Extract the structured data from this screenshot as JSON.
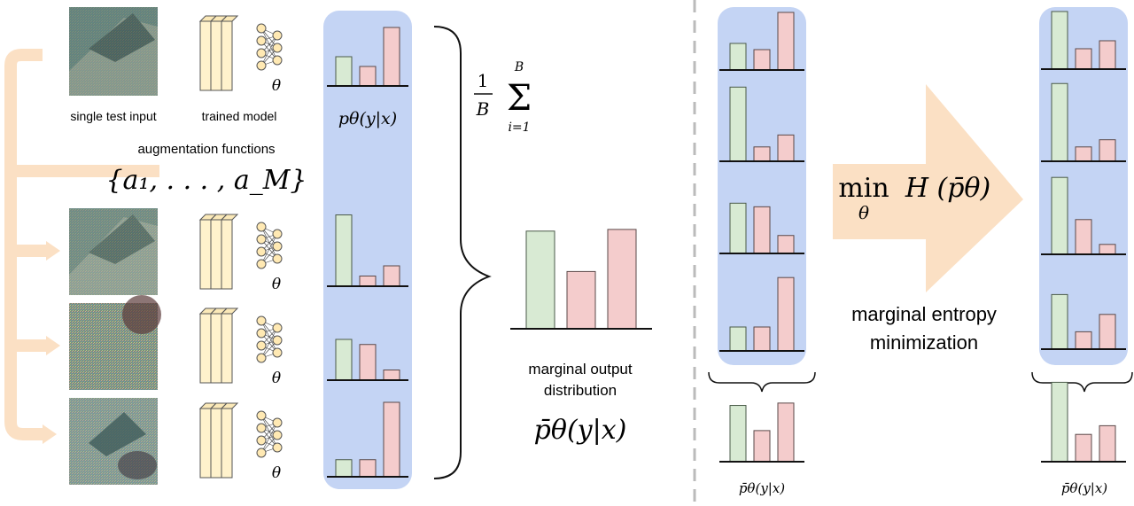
{
  "labels": {
    "single_test_input": "single test input",
    "trained_model": "trained model",
    "augmentation_functions": "augmentation functions",
    "aug_set": "{a₁, . . . , a_M}",
    "theta": "θ",
    "p_theta": "pθ(y|x)",
    "sum_one": "1",
    "sum_B": "B",
    "sum_top": "B",
    "sum_bottom": "i=1",
    "marginal_output": "marginal output",
    "distribution": "distribution",
    "pbar_large": "p̄θ(y|x)",
    "min": "min",
    "min_sub": "θ",
    "entropy": "H (p̄θ)",
    "marginal_entropy": "marginal entropy",
    "minimization": "minimization",
    "pbar_small_left": "p̄θ(y|x)",
    "pbar_small_right": "p̄θ(y|x)"
  },
  "colors": {
    "green": "#d8ead3",
    "green_stroke": "#4a5a48",
    "pink": "#f4cccc",
    "pink_stroke": "#5a4848",
    "panel_blue": "#c4d4f4",
    "arrow_peach": "#fbe0c4",
    "model_yellow": "#fff2cc",
    "divider": "#bbbbbb"
  },
  "chart_data": [
    {
      "type": "bar",
      "name_ref": "pipeline-top",
      "values": [
        3,
        2,
        6
      ]
    },
    {
      "type": "bar",
      "name_ref": "pipeline-aug1",
      "values": [
        7,
        1,
        2
      ]
    },
    {
      "type": "bar",
      "name_ref": "pipeline-aug2",
      "values": [
        4,
        3.5,
        1
      ]
    },
    {
      "type": "bar",
      "name_ref": "pipeline-aug3",
      "values": [
        1.1,
        1.1,
        4.8
      ]
    },
    {
      "type": "bar",
      "name_ref": "pipeline-marginal",
      "values": [
        5.8,
        3.4,
        5.9
      ]
    },
    {
      "type": "bar",
      "name_ref": "before-1",
      "values": [
        3,
        2.3,
        6.5
      ]
    },
    {
      "type": "bar",
      "name_ref": "before-2",
      "values": [
        6.2,
        1.2,
        2.2
      ]
    },
    {
      "type": "bar",
      "name_ref": "before-3",
      "values": [
        4.2,
        3.9,
        1.5
      ]
    },
    {
      "type": "bar",
      "name_ref": "before-4",
      "values": [
        1.5,
        1.5,
        4.6
      ]
    },
    {
      "type": "bar",
      "name_ref": "before-marginal",
      "values": [
        4.7,
        2.6,
        4.9
      ]
    },
    {
      "type": "bar",
      "name_ref": "after-1",
      "values": [
        6.5,
        2.3,
        3.2
      ]
    },
    {
      "type": "bar",
      "name_ref": "after-2",
      "values": [
        6.5,
        1.2,
        1.8
      ]
    },
    {
      "type": "bar",
      "name_ref": "after-3",
      "values": [
        6.2,
        2.8,
        0.8
      ]
    },
    {
      "type": "bar",
      "name_ref": "after-4",
      "values": [
        4.4,
        1.4,
        2.8
      ]
    },
    {
      "type": "bar",
      "name_ref": "after-marginal",
      "values": [
        6.4,
        2.2,
        2.9
      ]
    }
  ]
}
